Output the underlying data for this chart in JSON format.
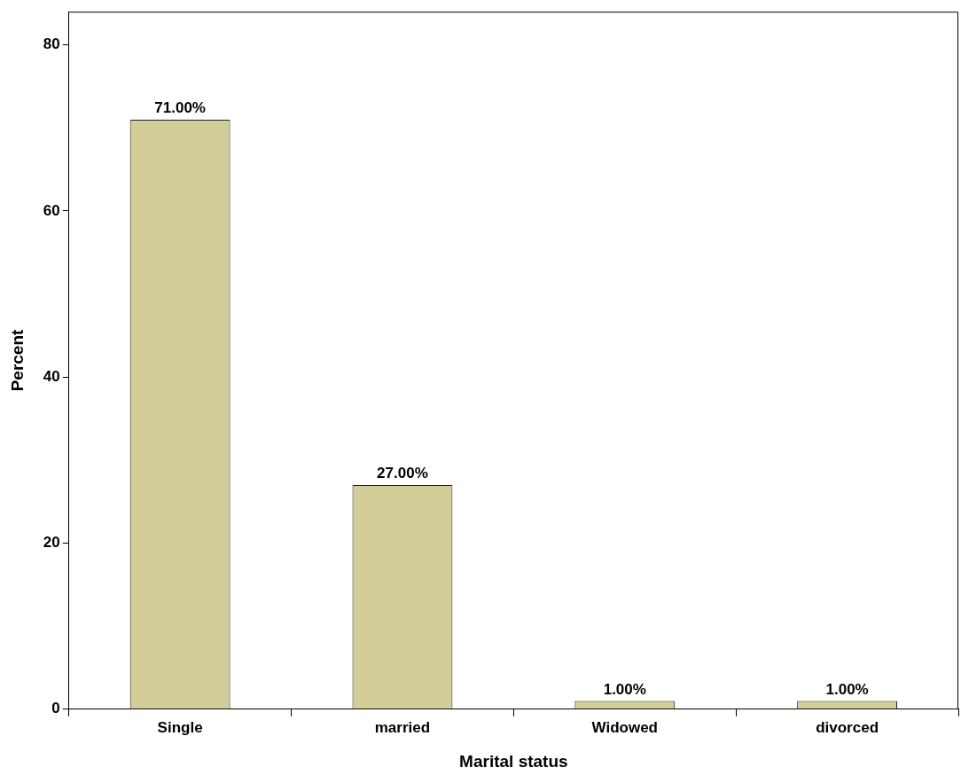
{
  "chart_data": {
    "type": "bar",
    "xlabel": "Marital status",
    "ylabel": "Percent",
    "categories": [
      "Single",
      "married",
      "Widowed",
      "divorced"
    ],
    "values": [
      71,
      27,
      1,
      1
    ],
    "value_labels": [
      "71.00%",
      "27.00%",
      "1.00%",
      "1.00%"
    ],
    "color": "#d3ce97",
    "ylim": [
      0,
      84
    ],
    "yticks": [
      0,
      20,
      40,
      60,
      80
    ],
    "grid": false,
    "legend": false
  }
}
